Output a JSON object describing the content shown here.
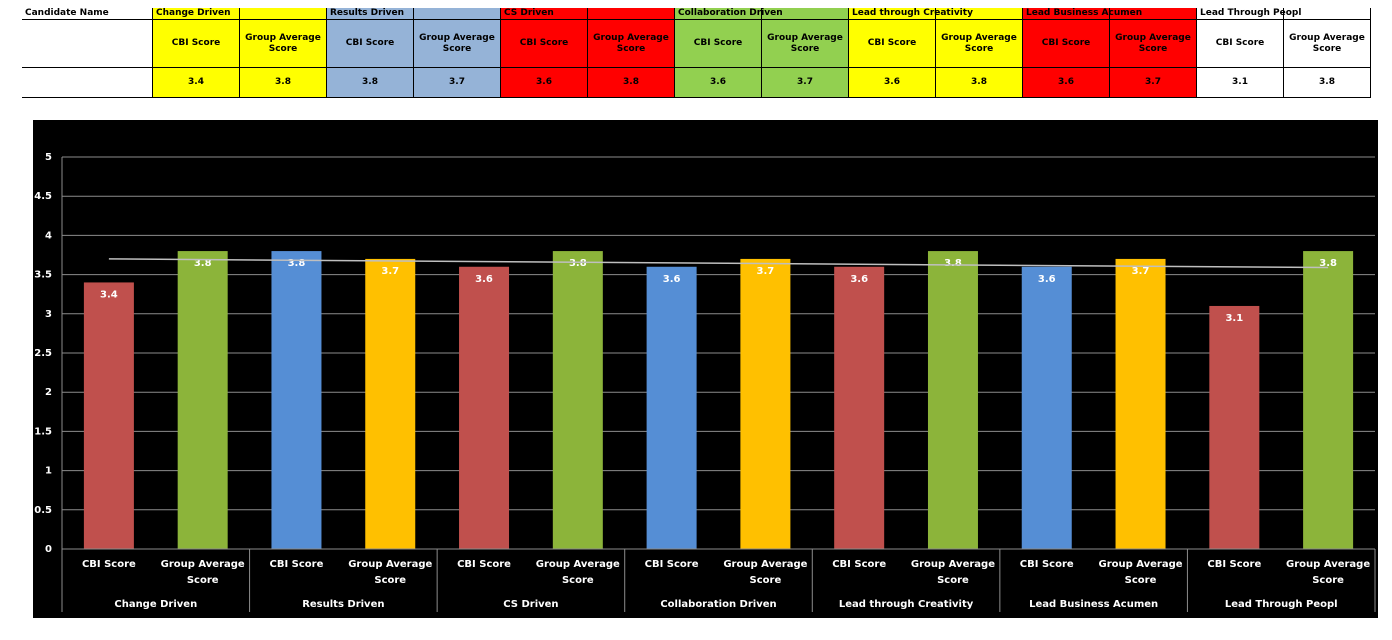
{
  "table": {
    "corner": "Candidate Name",
    "groups": [
      {
        "name": "Change Driven",
        "color": "#ffff00",
        "headers": [
          "CBI Score",
          "Group Average Score"
        ],
        "values": [
          3.4,
          3.8
        ]
      },
      {
        "name": "Results  Driven",
        "color": "#95b3d7",
        "headers": [
          "CBI Score",
          "Group Average Score"
        ],
        "values": [
          3.8,
          3.7
        ]
      },
      {
        "name": "CS  Driven",
        "color": "#ff0000",
        "headers": [
          "CBI Score",
          "Group Average Score"
        ],
        "values": [
          3.6,
          3.8
        ]
      },
      {
        "name": "Collaboration Driven",
        "color": "#92d050",
        "headers": [
          "CBI Score",
          "Group Average Score"
        ],
        "values": [
          3.6,
          3.7
        ]
      },
      {
        "name": "Lead through Creativity",
        "color": "#ffff00",
        "headers": [
          "CBI Score",
          "Group Average Score"
        ],
        "values": [
          3.6,
          3.8
        ]
      },
      {
        "name": "Lead Business Acumen",
        "color": "#ff0000",
        "headers": [
          "CBI Score",
          "Group Average Score"
        ],
        "values": [
          3.6,
          3.7
        ]
      },
      {
        "name": "Lead Through  Peopl",
        "color": "#ffffff",
        "headers": [
          "CBI Score",
          "Group Average Score"
        ],
        "values": [
          3.1,
          3.8
        ]
      }
    ]
  },
  "chart_data": {
    "type": "bar",
    "categories": [
      "Change Driven",
      "Results  Driven",
      "CS  Driven",
      "Collaboration Driven",
      "Lead through Creativity",
      "Lead Business Acumen",
      "Lead Through  Peopl"
    ],
    "series": [
      {
        "name": "CBI Score",
        "values": [
          3.4,
          3.8,
          3.6,
          3.6,
          3.6,
          3.6,
          3.1
        ],
        "colors": [
          "#c0504d",
          "#558ed5",
          "#c0504d",
          "#558ed5",
          "#c0504d",
          "#558ed5",
          "#c0504d"
        ]
      },
      {
        "name": "Group Average Score",
        "values": [
          3.8,
          3.7,
          3.8,
          3.7,
          3.8,
          3.7,
          3.8
        ],
        "colors": [
          "#8cb43a",
          "#ffc000",
          "#8cb43a",
          "#ffc000",
          "#8cb43a",
          "#ffc000",
          "#8cb43a"
        ]
      }
    ],
    "trend": [
      3.7,
      3.59
    ],
    "ylim": [
      0,
      5
    ],
    "yticks": [
      0,
      0.5,
      1,
      1.5,
      2,
      2.5,
      3,
      3.5,
      4,
      4.5,
      5
    ],
    "grid": true
  }
}
